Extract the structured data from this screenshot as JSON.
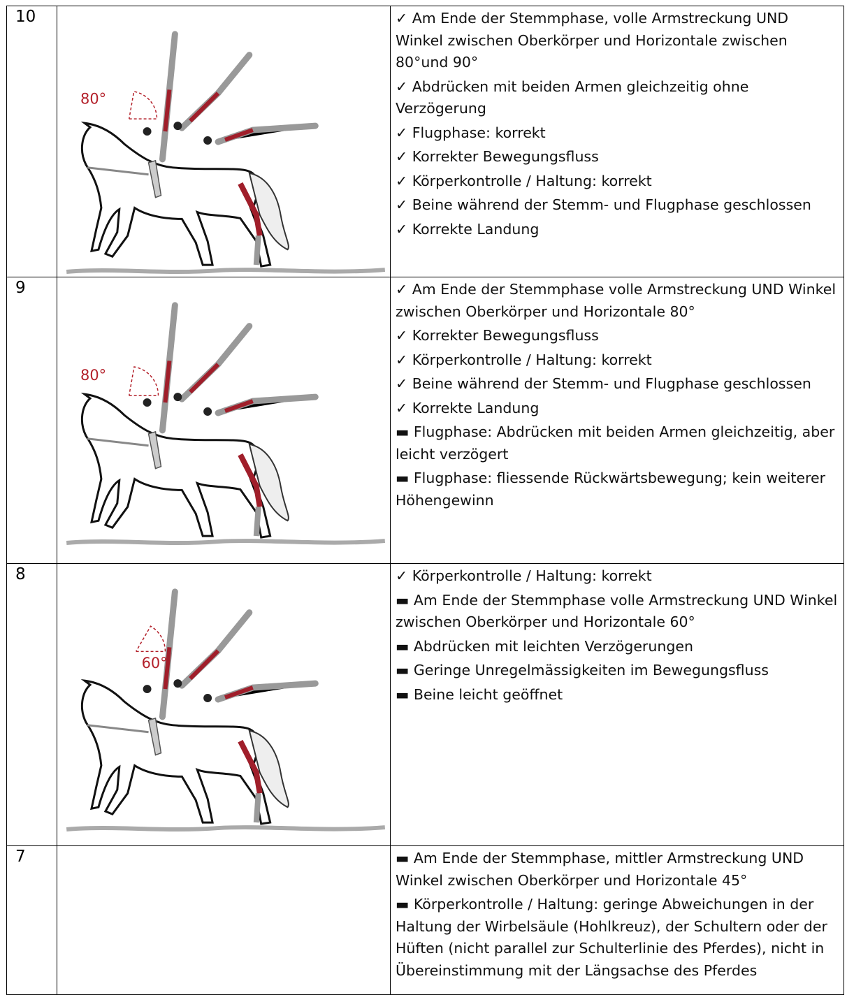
{
  "table": {
    "rows": [
      {
        "score": "10",
        "angle_label": "80°",
        "criteria": [
          "✓ Am Ende der Stemmphase, volle Armstreckung UND Winkel zwischen Oberkörper und Horizontale zwischen 80°und 90°",
          "✓ Abdrücken mit beiden Armen gleichzeitig ohne Verzögerung",
          "✓ Flugphase: korrekt",
          "✓ Korrekter Bewegungsfluss",
          "✓ Körperkontrolle / Haltung: korrekt",
          "✓ Beine während der Stemm- und Flugphase geschlossen",
          "✓ Korrekte Landung"
        ]
      },
      {
        "score": "9",
        "angle_label": "80°",
        "criteria": [
          "✓ Am Ende der Stemmphase volle Armstreckung UND Winkel zwischen Oberkörper und Horizontale 80°",
          "✓ Korrekter Bewegungsfluss",
          "✓ Körperkontrolle / Haltung: korrekt",
          "✓ Beine während der Stemm- und Flugphase geschlossen",
          "✓ Korrekte Landung",
          "▬ Flugphase: Abdrücken mit beiden Armen gleichzeitig, aber leicht verzögert",
          "▬ Flugphase: fliessende Rückwärtsbewegung; kein weiterer Höhengewinn"
        ]
      },
      {
        "score": "8",
        "angle_label": "60°",
        "criteria": [
          "✓ Körperkontrolle / Haltung: korrekt",
          "▬ Am Ende der Stemmphase volle Armstreckung UND Winkel zwischen Oberkörper und Horizontale 60°",
          "▬ Abdrücken mit leichten Verzögerungen",
          "▬ Geringe Unregelmässigkeiten im Bewegungsfluss",
          "▬ Beine leicht geöffnet"
        ]
      },
      {
        "score": "7",
        "criteria": [
          "▬ Am Ende der Stemmphase, mittler Armstreckung UND Winkel zwischen Oberkörper und Horizontale 45°",
          "▬ Körperkontrolle / Haltung: geringe Abweichungen in der Haltung der Wirbelsäule (Hohlkreuz), der Schultern oder der Hüften (nicht parallel zur Schulterlinie des Pferdes), nicht in Übereinstimmung mit der Längsachse des Pferdes"
        ]
      }
    ]
  }
}
